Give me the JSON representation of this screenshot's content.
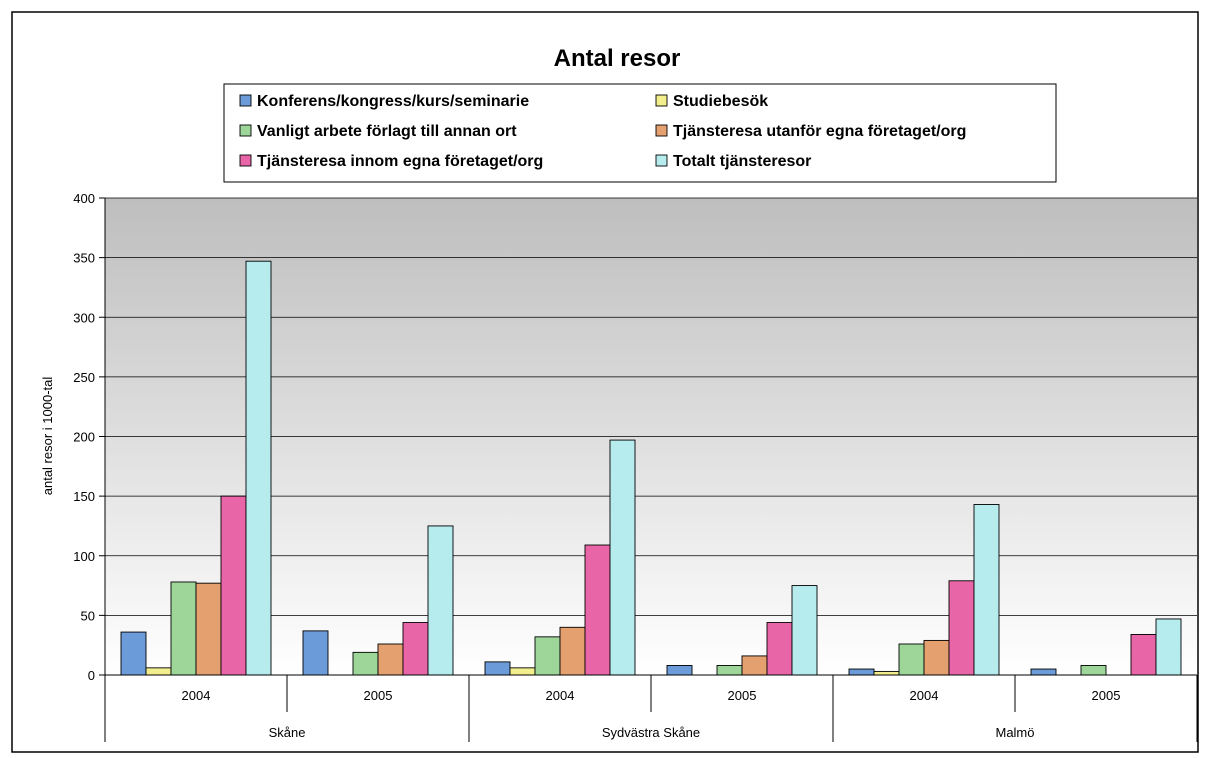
{
  "chart_data": {
    "type": "bar",
    "title": "Antal resor",
    "ylabel": "antal resor i 1000-tal",
    "xlabel": "",
    "ylim": [
      0,
      400
    ],
    "yticks": [
      0,
      50,
      100,
      150,
      200,
      250,
      300,
      350,
      400
    ],
    "grid": true,
    "legend_position": "top",
    "groups": [
      {
        "label": "Skåne",
        "categories": [
          "2004",
          "2005"
        ]
      },
      {
        "label": "Sydvästra Skåne",
        "categories": [
          "2004",
          "2005"
        ]
      },
      {
        "label": "Malmö",
        "categories": [
          "2004",
          "2005"
        ]
      }
    ],
    "categories": [
      "2004",
      "2005",
      "2004",
      "2005",
      "2004",
      "2005"
    ],
    "series": [
      {
        "name": "Konferens/kongress/kurs/seminarie",
        "color": "#6B9BD8",
        "values": [
          36,
          37,
          11,
          8,
          5,
          5
        ]
      },
      {
        "name": "Studiebesök",
        "color": "#F2EE8C",
        "values": [
          6,
          0,
          6,
          0,
          3,
          0
        ]
      },
      {
        "name": "Vanligt arbete förlagt till annan ort",
        "color": "#9ED69A",
        "values": [
          78,
          19,
          32,
          8,
          26,
          8
        ]
      },
      {
        "name": "Tjänsteresa utanför egna företaget/org",
        "color": "#E5A070",
        "values": [
          77,
          26,
          40,
          16,
          29,
          0
        ]
      },
      {
        "name": "Tjänsteresa innom egna företaget/org",
        "color": "#E866A8",
        "values": [
          150,
          44,
          109,
          44,
          79,
          34
        ]
      },
      {
        "name": "Totalt tjänsteresor",
        "color": "#B6ECEE",
        "values": [
          347,
          125,
          197,
          75,
          143,
          47
        ]
      }
    ],
    "legend_order": [
      0,
      1,
      2,
      3,
      4,
      5
    ]
  }
}
